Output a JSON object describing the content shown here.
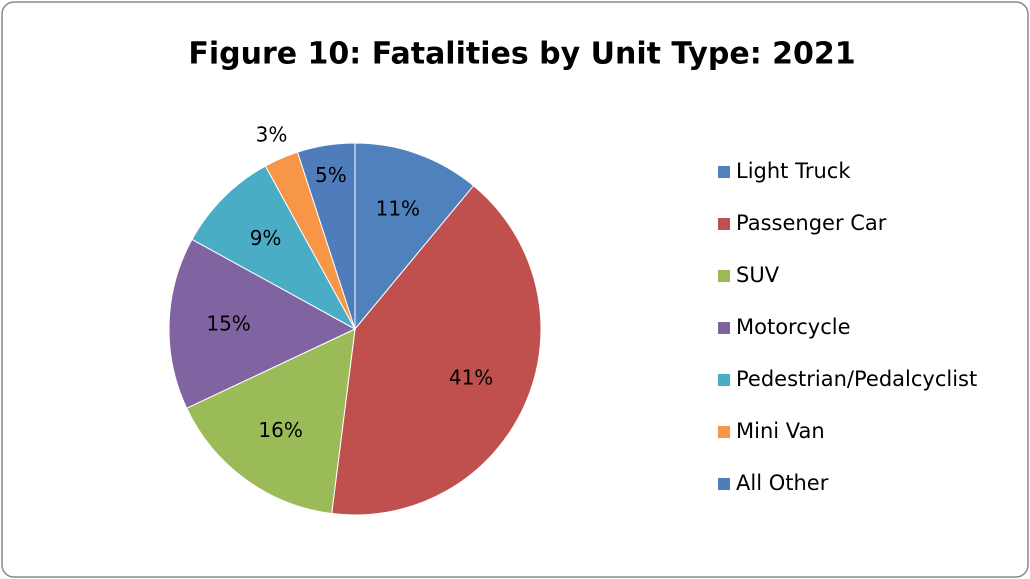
{
  "chart_data": {
    "type": "pie",
    "title": "Figure 10: Fatalities by Unit Type: 2021",
    "categories": [
      "Light Truck",
      "Passenger Car",
      "SUV",
      "Motorcycle",
      "Pedestrian/Pedalcyclist",
      "Mini Van",
      "All Other"
    ],
    "values": [
      11,
      41,
      16,
      15,
      9,
      3,
      5
    ],
    "value_labels": [
      "11%",
      "41%",
      "16%",
      "15%",
      "9%",
      "3%",
      "5%"
    ],
    "colors": [
      "#4f81bd",
      "#c0504d",
      "#9bbb59",
      "#8064a2",
      "#4bacc6",
      "#f79646",
      "#4f7dbb"
    ],
    "legend": "right"
  }
}
